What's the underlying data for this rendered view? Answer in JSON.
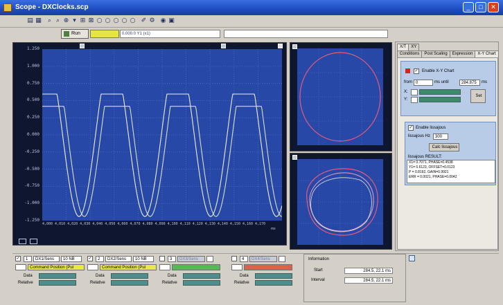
{
  "window": {
    "title": "Scope - DXClocks.scp",
    "minimize_label": "_",
    "maximize_label": "□",
    "close_label": "✕"
  },
  "toolbar": {
    "icons": [
      "save-icon",
      "print-icon",
      "zoom-in-icon",
      "zoom-out-icon",
      "zoom-select-icon",
      "grid-icon",
      "channel-icon",
      "cursor-1-icon",
      "cursor-2-icon",
      "cursor-3-icon",
      "cursor-4-icon",
      "cursor-5-icon",
      "export-icon",
      "settings-icon",
      "link-icon",
      "help-icon"
    ]
  },
  "toolbar2": {
    "run_label": "Run",
    "path_value": "0.000.0 Y1 (x1)"
  },
  "main_scope": {
    "y_labels": [
      "1.250",
      "1.000",
      "0.750",
      "0.500",
      "0.250",
      "0.000",
      "-0.250",
      "-0.500",
      "-0.750",
      "-1.000",
      "-1.250"
    ],
    "x_labels": "4,000  4,010  4,020  4,030  4,040  4,050  4,060  4,070  4,080  4,090  4,100  4,110  4,120  4,130  4,140  4,150  4,160  4,170",
    "x_unit": "ms"
  },
  "right_panel": {
    "tabs_row1": [
      "X/T",
      "XY"
    ],
    "tabs_row2": [
      "Conditions",
      "Post Scaling",
      "Expression",
      "X-Y Chart"
    ],
    "enable_label": "Enable X-Y Chart",
    "from_label": "from",
    "from_value": "0",
    "to_label": "ms  until",
    "to_value": "284.875",
    "to_unit": "ms",
    "x_axis_label": "X:",
    "y_axis_label": "Y:",
    "set_button": "Set",
    "enable_lissajous": "Enable lissajous",
    "lissajous_hz_label": "lissajous Hz",
    "lissajous_hz_value": "300",
    "calc_button": "Calc lissajous",
    "results_label": "lissajous RESULT:",
    "results": [
      "X1= 0.7071, PHASE=0.4538",
      "Y1= 0.6123, OFFSET=0.0123",
      "P = 0.8192, GAIN=0.9921",
      "ERR = 0.0021, PHASE=0.0042"
    ]
  },
  "bottom": {
    "channels": [
      {
        "num": "1",
        "source": "DX1/Sens",
        "scale": "10 NB",
        "signal": "Command Position (Pul",
        "data_label": "Data",
        "relative_label": "Relative"
      },
      {
        "num": "2",
        "source": "DX2/Sens",
        "scale": "10 NB",
        "signal": "Command Position (Pul",
        "data_label": "Data",
        "relative_label": "Relative"
      },
      {
        "num": "3",
        "source": "DX3/Sens",
        "scale": "",
        "signal": "",
        "data_label": "Data",
        "relative_label": "Relative"
      },
      {
        "num": "4",
        "source": "DX4/Sens",
        "scale": "",
        "signal": "",
        "data_label": "Data",
        "relative_label": "Relative"
      }
    ],
    "info_title": "Information",
    "start_label": "Start",
    "start_value": "284.5, 22.1  ms",
    "interval_label": "Interval",
    "interval_value": "284.5, 22.1  ms"
  }
}
